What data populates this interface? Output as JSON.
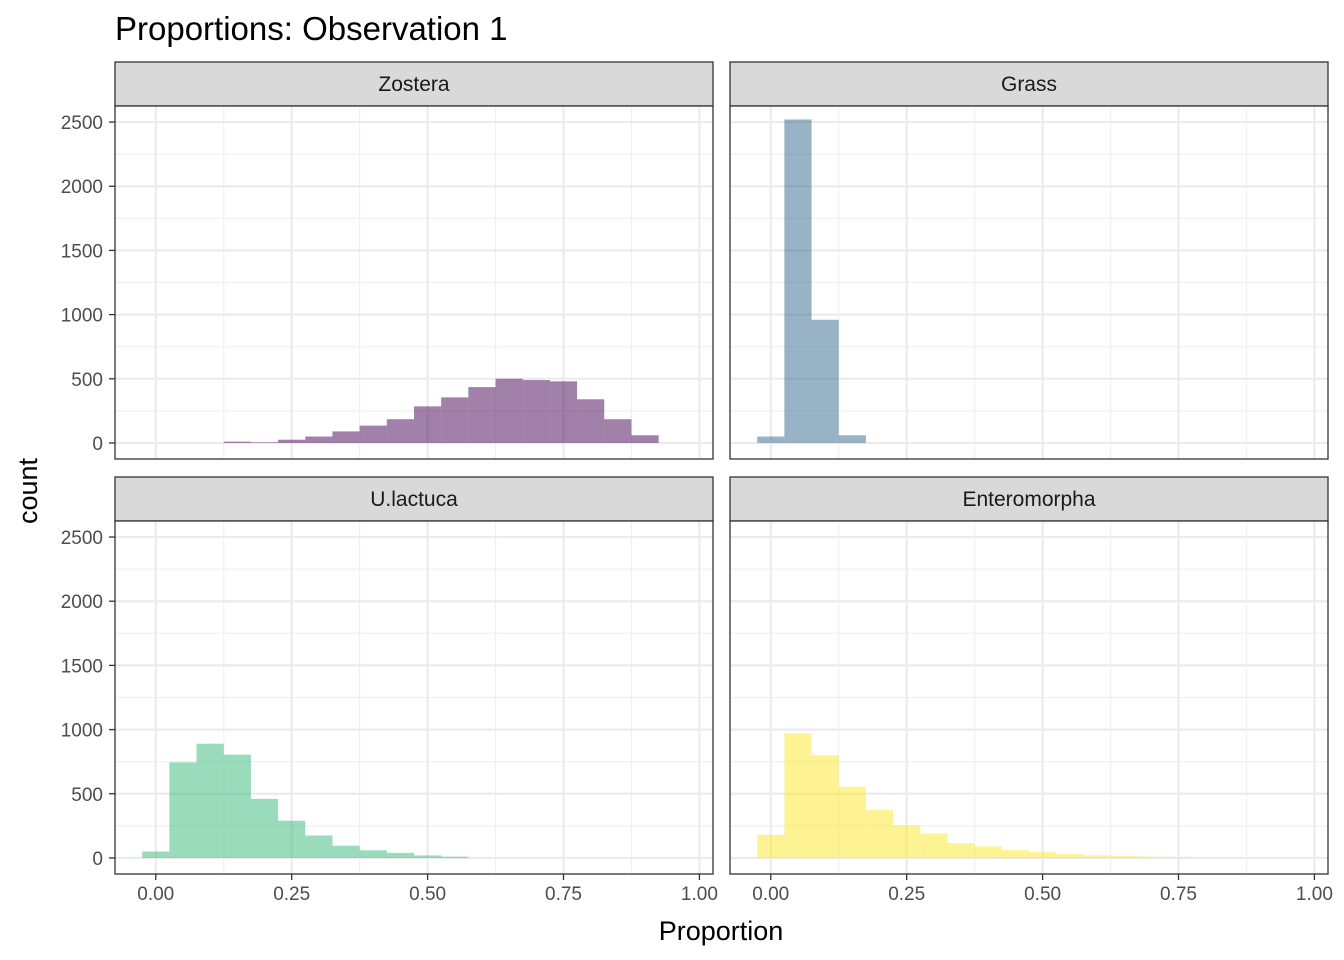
{
  "chart_data": {
    "type": "bar",
    "title": "Proportions: Observation 1",
    "xlabel": "Proportion",
    "ylabel": "count",
    "xlim": [
      -0.075,
      1.025
    ],
    "ylim": [
      -125,
      2625
    ],
    "x_ticks": [
      0,
      0.25,
      0.5,
      0.75,
      1
    ],
    "x_tick_labels": [
      "0.00",
      "0.25",
      "0.50",
      "0.75",
      "1.00"
    ],
    "y_ticks": [
      0,
      500,
      1000,
      1500,
      2000,
      2500
    ],
    "y_tick_labels": [
      "0",
      "500",
      "1000",
      "1500",
      "2000",
      "2500"
    ],
    "grid": true,
    "bin_width": 0.05,
    "bin_centers": [
      0.0,
      0.05,
      0.1,
      0.15,
      0.2,
      0.25,
      0.3,
      0.35,
      0.4,
      0.45,
      0.5,
      0.55,
      0.6,
      0.65,
      0.7,
      0.75,
      0.8,
      0.85,
      0.9,
      0.95,
      1.0
    ],
    "panels": [
      {
        "name": "Zostera",
        "color": "#440154",
        "values": [
          0,
          0,
          0,
          10,
          5,
          25,
          50,
          90,
          135,
          185,
          285,
          355,
          435,
          500,
          490,
          480,
          340,
          185,
          60,
          0,
          0
        ]
      },
      {
        "name": "Grass",
        "color": "#31688E",
        "values": [
          50,
          2520,
          960,
          60,
          0,
          0,
          0,
          0,
          0,
          0,
          0,
          0,
          0,
          0,
          0,
          0,
          0,
          0,
          0,
          0,
          0
        ]
      },
      {
        "name": "U.lactuca",
        "color": "#35B779",
        "values": [
          50,
          745,
          890,
          805,
          460,
          290,
          175,
          95,
          60,
          40,
          20,
          10,
          0,
          0,
          0,
          0,
          0,
          0,
          0,
          0,
          0
        ]
      },
      {
        "name": "Enteromorpha",
        "color": "#FDE725",
        "values": [
          180,
          970,
          800,
          555,
          375,
          255,
          190,
          115,
          90,
          60,
          45,
          30,
          20,
          15,
          10,
          5,
          0,
          0,
          0,
          0,
          0
        ]
      }
    ]
  }
}
